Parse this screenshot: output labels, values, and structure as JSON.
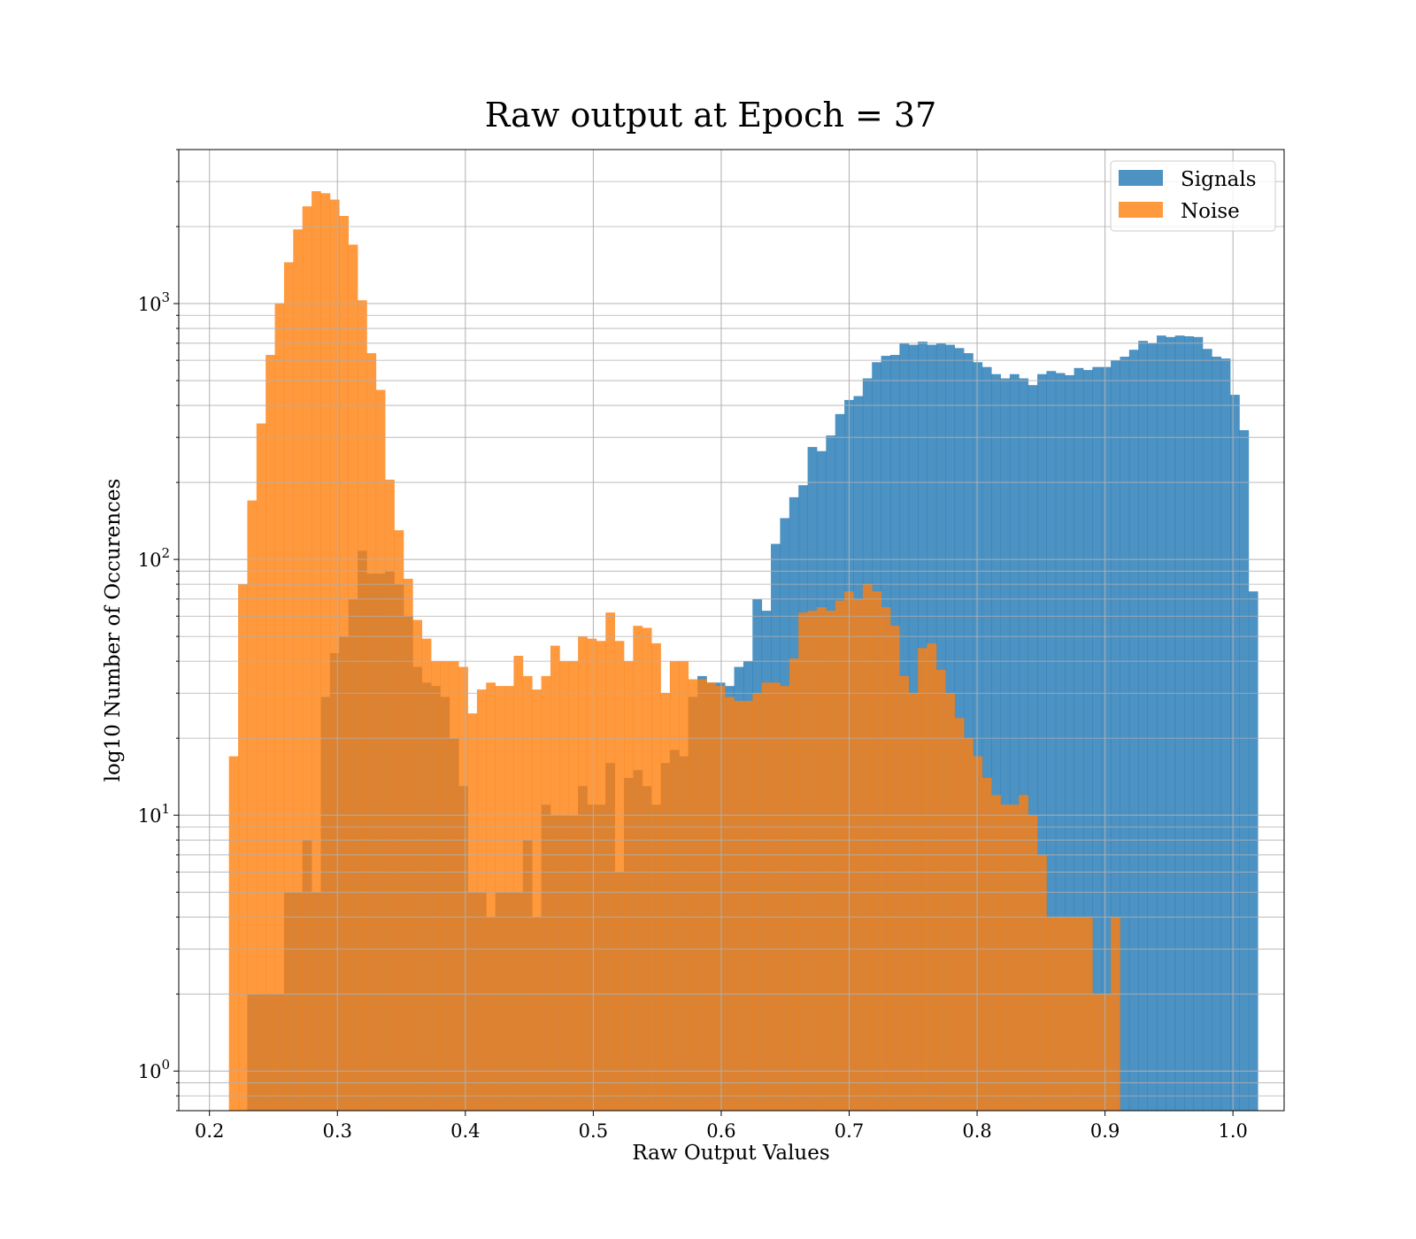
{
  "chart_data": {
    "type": "bar",
    "title": "Raw output at Epoch = 37",
    "xlabel": "Raw Output Values",
    "ylabel": "log10 Number of Occurences",
    "yscale": "log",
    "xlim": [
      0.176,
      1.04
    ],
    "ylim": [
      0.7,
      4000
    ],
    "grid": true,
    "grid_minor": true,
    "legend_position": "top-right",
    "bin_start": 0.2152,
    "bin_width": 0.00718,
    "x_ticks": [
      "0.2",
      "0.3",
      "0.4",
      "0.5",
      "0.6",
      "0.7",
      "0.8",
      "0.9",
      "1.0"
    ],
    "x_tick_values": [
      0.2,
      0.3,
      0.4,
      0.5,
      0.6,
      0.7,
      0.8,
      0.9,
      1.0
    ],
    "y_ticks": [
      {
        "value": 1,
        "base": "10",
        "exp": "0"
      },
      {
        "value": 10,
        "base": "10",
        "exp": "1"
      },
      {
        "value": 100,
        "base": "10",
        "exp": "2"
      },
      {
        "value": 1000,
        "base": "10",
        "exp": "3"
      }
    ],
    "series": [
      {
        "name": "Signals",
        "color": "#1f77b4",
        "values": [
          0,
          0,
          2,
          2,
          2,
          2,
          5,
          5,
          8,
          5,
          29,
          43,
          50,
          70,
          108,
          88,
          88,
          90,
          80,
          60,
          38,
          33,
          32,
          29,
          20,
          13,
          5,
          5,
          4,
          5,
          5,
          5,
          8,
          4,
          11,
          10,
          10,
          10,
          13,
          11,
          11,
          16,
          6,
          14,
          15,
          13,
          11,
          16,
          18,
          17,
          29,
          35,
          33,
          33,
          32,
          38,
          40,
          70,
          63,
          115,
          145,
          175,
          195,
          275,
          265,
          305,
          370,
          420,
          435,
          510,
          590,
          625,
          630,
          700,
          690,
          710,
          690,
          700,
          690,
          670,
          640,
          590,
          565,
          530,
          510,
          530,
          510,
          480,
          530,
          545,
          535,
          525,
          560,
          550,
          565,
          565,
          600,
          620,
          660,
          715,
          700,
          750,
          740,
          750,
          745,
          740,
          665,
          620,
          610,
          440,
          320,
          75
        ]
      },
      {
        "name": "Noise",
        "color": "#ff7f0e",
        "values": [
          17,
          80,
          170,
          340,
          630,
          1000,
          1450,
          1950,
          2400,
          2750,
          2700,
          2550,
          2200,
          1700,
          1030,
          640,
          460,
          205,
          130,
          84,
          58,
          49,
          40,
          40,
          40,
          38,
          25,
          31,
          33,
          32,
          32,
          42,
          35,
          31,
          35,
          46,
          40,
          40,
          50,
          49,
          48,
          62,
          48,
          40,
          55,
          54,
          47,
          30,
          40,
          40,
          34,
          34,
          33,
          32,
          29,
          28,
          28,
          30,
          33,
          33,
          32,
          41,
          62,
          63,
          65,
          63,
          69,
          75,
          70,
          80,
          75,
          65,
          55,
          35,
          30,
          45,
          47,
          37,
          30,
          24,
          20,
          17,
          14,
          12,
          11,
          11,
          12,
          10,
          7,
          4,
          4,
          4,
          4,
          4,
          2,
          2,
          4,
          0,
          0,
          0,
          0,
          0,
          0,
          0,
          0,
          0,
          0,
          0,
          0,
          0,
          0,
          0
        ]
      }
    ]
  }
}
